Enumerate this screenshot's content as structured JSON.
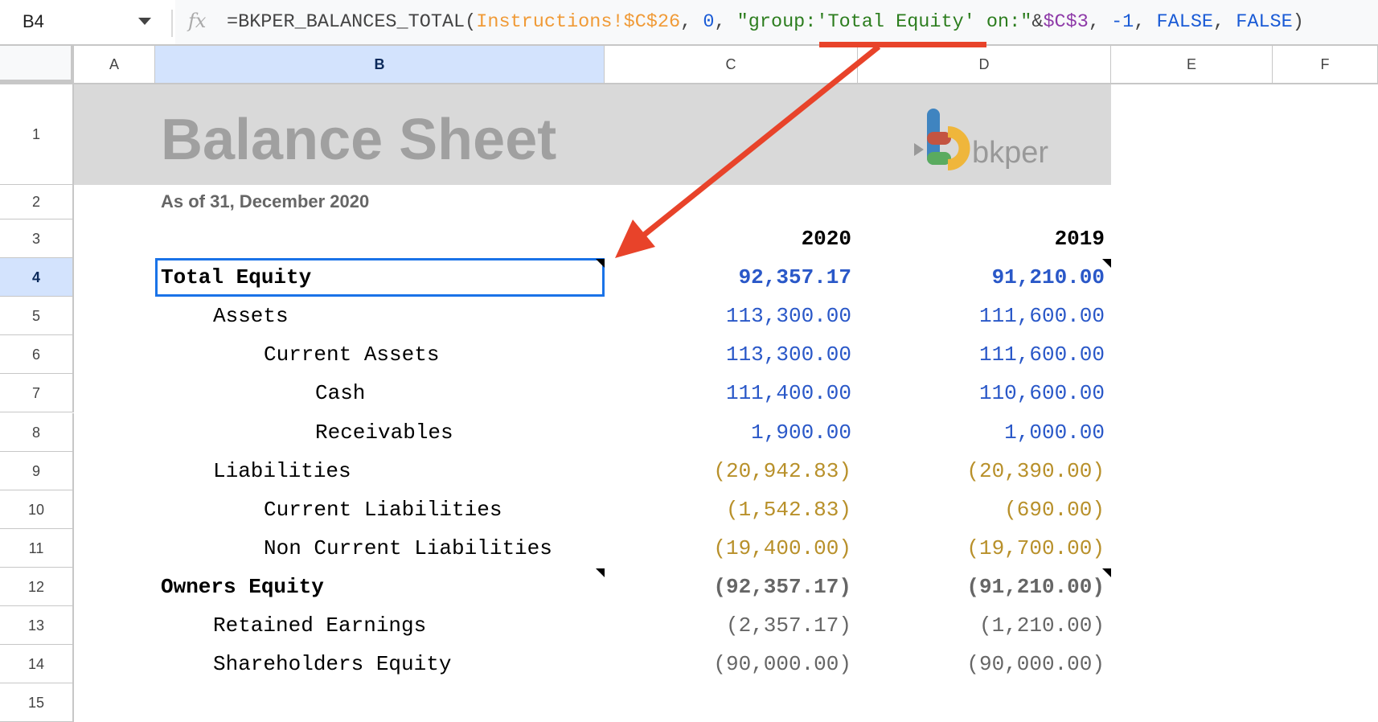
{
  "formula_bar": {
    "name_box": "B4",
    "fx_label": "fx",
    "formula_parts": [
      {
        "text": "=BKPER_BALANCES_TOTAL(",
        "kind": "fn"
      },
      {
        "text": "Instructions!$C$26",
        "kind": "ref"
      },
      {
        "text": ", ",
        "kind": "fn"
      },
      {
        "text": "0",
        "kind": "num"
      },
      {
        "text": ", ",
        "kind": "fn"
      },
      {
        "text": "\"group:'Total Equity' on:\"",
        "kind": "str"
      },
      {
        "text": "&",
        "kind": "fn"
      },
      {
        "text": "$C$3",
        "kind": "ref2"
      },
      {
        "text": ", ",
        "kind": "fn"
      },
      {
        "text": "-1",
        "kind": "num"
      },
      {
        "text": ", ",
        "kind": "fn"
      },
      {
        "text": "FALSE",
        "kind": "num"
      },
      {
        "text": ", ",
        "kind": "fn"
      },
      {
        "text": "FALSE",
        "kind": "num"
      },
      {
        "text": ")",
        "kind": "fn"
      }
    ]
  },
  "columns": [
    "A",
    "B",
    "C",
    "D",
    "E",
    "F"
  ],
  "selected_column": "B",
  "rows": [
    "1",
    "2",
    "3",
    "4",
    "5",
    "6",
    "7",
    "8",
    "9",
    "10",
    "11",
    "12",
    "13",
    "14",
    "15"
  ],
  "selected_row": "4",
  "sheet": {
    "title": "Balance Sheet",
    "subtitle": "As of 31, December 2020",
    "logo_text": "bkper",
    "year_headers": [
      "2020",
      "2019"
    ],
    "lines": [
      {
        "label": "Total Equity",
        "level": 0,
        "bold": true,
        "c": "92,357.17",
        "d": "91,210.00",
        "color": "#2a58c8"
      },
      {
        "label": "Assets",
        "level": 1,
        "bold": false,
        "c": "113,300.00",
        "d": "111,600.00",
        "color": "#2a58c8"
      },
      {
        "label": "Current Assets",
        "level": 2,
        "bold": false,
        "c": "113,300.00",
        "d": "111,600.00",
        "color": "#2a58c8"
      },
      {
        "label": "Cash",
        "level": 3,
        "bold": false,
        "c": "111,400.00",
        "d": "110,600.00",
        "color": "#2a58c8"
      },
      {
        "label": "Receivables",
        "level": 3,
        "bold": false,
        "c": "1,900.00",
        "d": "1,000.00",
        "color": "#2a58c8"
      },
      {
        "label": "Liabilities",
        "level": 1,
        "bold": false,
        "c": "(20,942.83)",
        "d": "(20,390.00)",
        "color": "#b8902a"
      },
      {
        "label": "Current Liabilities",
        "level": 2,
        "bold": false,
        "c": "(1,542.83)",
        "d": "(690.00)",
        "color": "#b8902a"
      },
      {
        "label": "Non Current Liabilities",
        "level": 2,
        "bold": false,
        "c": "(19,400.00)",
        "d": "(19,700.00)",
        "color": "#b8902a"
      },
      {
        "label": "Owners Equity",
        "level": 0,
        "bold": true,
        "c": "(92,357.17)",
        "d": "(91,210.00)",
        "color": "#666666"
      },
      {
        "label": "Retained Earnings",
        "level": 1,
        "bold": false,
        "c": "(2,357.17)",
        "d": "(1,210.00)",
        "color": "#666666"
      },
      {
        "label": "Shareholders Equity",
        "level": 1,
        "bold": false,
        "c": "(90,000.00)",
        "d": "(90,000.00)",
        "color": "#666666"
      }
    ]
  },
  "colors": {
    "selection": "#1a73e8",
    "annotation_arrow": "#e8432a",
    "header_highlight": "#d3e3fd"
  }
}
